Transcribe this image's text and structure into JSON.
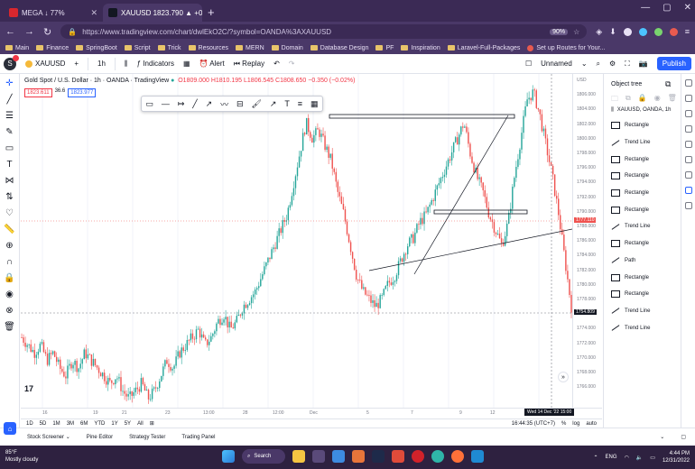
{
  "browser": {
    "tabs": [
      {
        "title": "MEGA ↓ 77%",
        "fav_color": "#d9272e"
      },
      {
        "title": "XAUUSD 1823.790 ▲ +0.49% U...",
        "fav_color": "#131722"
      }
    ],
    "url": "https://www.tradingview.com/chart/dwlEkO2C/?symbol=OANDA%3AXAUUSD",
    "zoom": "90%",
    "bookmarks": [
      "Main",
      "Finance",
      "SpringBoot",
      "Script",
      "Trick",
      "Resources",
      "MERN",
      "Domain",
      "Database Design",
      "PF",
      "Inspiration",
      "Laravel-Full-Packages",
      "Set up Routes for Your..."
    ]
  },
  "toolbar": {
    "avatar_letter": "S",
    "symbol": "XAUUSD",
    "interval": "1h",
    "indicators": "Indicators",
    "alert": "Alert",
    "replay": "Replay",
    "layout_name": "Unnamed",
    "publish": "Publish"
  },
  "legend": {
    "title": "Gold Spot / U.S. Dollar · 1h · OANDA · TradingView",
    "ohlc": "O1809.000 H1810.195 L1806.545 C1808.650 −0.350 (−0.02%)",
    "bid": "1823.611",
    "spread": "36.6",
    "ask": "1823.977"
  },
  "price_axis": {
    "labels": [
      "USD",
      "1806.000",
      "1804.000",
      "1802.000",
      "1800.000",
      "1798.000",
      "1796.000",
      "1794.000",
      "1792.000",
      "1790.000",
      "1788.000",
      "1786.000",
      "1784.000",
      "1782.000",
      "1780.000",
      "1778.000",
      "1776.000",
      "1774.000",
      "1772.000",
      "1770.000",
      "1768.000",
      "1766.000"
    ],
    "current_price": "1777.110",
    "crosshair_price": "1754.809"
  },
  "time_axis": {
    "labels": [
      "16",
      "19",
      "21",
      "23",
      "13:00",
      "28",
      "12:00",
      "Dec",
      "5",
      "7",
      "9",
      "12"
    ],
    "crosshair_time": "Wed 14 Dec '22  15:00"
  },
  "timeframes": [
    "1D",
    "5D",
    "1M",
    "3M",
    "6M",
    "YTD",
    "1Y",
    "5Y",
    "All"
  ],
  "status": {
    "time": "16:44:35 (UTC+7)",
    "percent": "%",
    "log": "log",
    "auto": "auto"
  },
  "object_tree": {
    "title": "Object tree",
    "symbol_row": "XAUUSD, OANDA, 1h",
    "items": [
      "Rectangle",
      "Trend Line",
      "Rectangle",
      "Rectangle",
      "Rectangle",
      "Rectangle",
      "Trend Line",
      "Rectangle",
      "Path",
      "Rectangle",
      "Rectangle",
      "Trend Line",
      "Trend Line"
    ]
  },
  "bottom_tabs": [
    "Stock Screener",
    "Pine Editor",
    "Strategy Tester",
    "Trading Panel"
  ],
  "taskbar": {
    "temp": "85°F",
    "weather": "Mostly cloudy",
    "search": "Search",
    "lang": "ENG",
    "time": "4:44 PM",
    "date": "12/31/2022"
  },
  "colors": {
    "up": "#26a69a",
    "down": "#ef5350",
    "accent": "#2962ff"
  },
  "chart_data": {
    "type": "candlestick",
    "symbol": "XAUUSD",
    "interval": "1h",
    "x_range": [
      "Nov 14 2022",
      "Dec 14 2022"
    ],
    "y_range": [
      1766,
      1806
    ],
    "price_path": [
      1774,
      1773,
      1772,
      1773,
      1771,
      1772,
      1770,
      1769,
      1771,
      1770,
      1772,
      1771,
      1770,
      1769,
      1768,
      1769,
      1767,
      1766,
      1767,
      1768,
      1766,
      1767,
      1769,
      1771,
      1770,
      1772,
      1773,
      1774,
      1775,
      1773,
      1774,
      1776,
      1777,
      1775,
      1776,
      1778,
      1779,
      1780,
      1782,
      1784,
      1786,
      1788,
      1790,
      1794,
      1798,
      1802,
      1800,
      1801,
      1799,
      1797,
      1793,
      1790,
      1786,
      1782,
      1780,
      1779,
      1778,
      1779,
      1781,
      1782,
      1784,
      1786,
      1787,
      1789,
      1790,
      1792,
      1794,
      1796,
      1798,
      1800,
      1802,
      1798,
      1795,
      1793,
      1790,
      1788,
      1786,
      1789,
      1795,
      1800,
      1805,
      1806,
      1803,
      1799,
      1795,
      1790,
      1784,
      1778
    ]
  }
}
